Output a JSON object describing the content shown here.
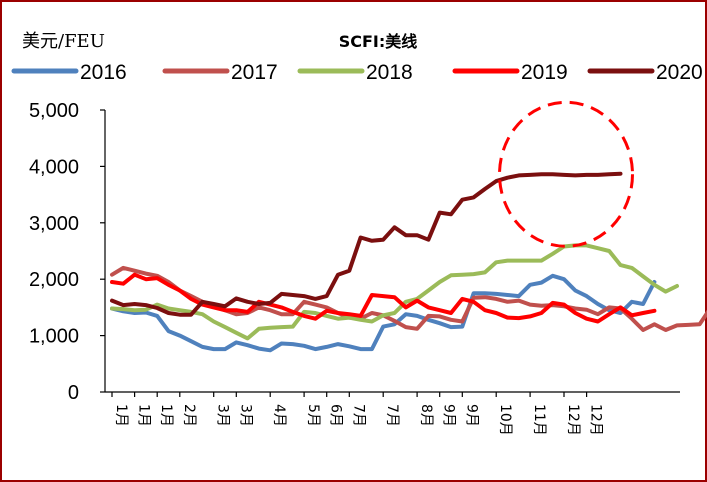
{
  "chart_data": {
    "type": "line",
    "title": "SCFI:美线",
    "ylabel": "美元/FEU",
    "xlabel": "",
    "ylim": [
      0,
      5000
    ],
    "yticks": [
      0,
      1000,
      2000,
      3000,
      4000,
      5000
    ],
    "ytick_labels": [
      "0",
      "1,000",
      "2,000",
      "3,000",
      "4,000",
      "5,000"
    ],
    "grid": false,
    "legend_position": "top",
    "x_labels": [
      "1月",
      "1月",
      "1月",
      "2月",
      "3月",
      "3月",
      "4月",
      "5月",
      "6月",
      "7月",
      "7月",
      "8月",
      "9月",
      "9月",
      "10月",
      "11月",
      "12月",
      "12月"
    ],
    "x_label_weeks": [
      0,
      2,
      4,
      6,
      9,
      11,
      14,
      17,
      19,
      21,
      24,
      27,
      29,
      31,
      34,
      37,
      40,
      42
    ],
    "series": [
      {
        "name": "2016",
        "color": "#4f81bd",
        "values": [
          1480,
          1430,
          1400,
          1410,
          1350,
          1080,
          1000,
          900,
          800,
          760,
          760,
          880,
          830,
          770,
          740,
          860,
          850,
          820,
          760,
          800,
          850,
          810,
          760,
          760,
          1160,
          1200,
          1380,
          1350,
          1280,
          1220,
          1150,
          1160,
          1750,
          1750,
          1740,
          1720,
          1700,
          1900,
          1940,
          2060,
          2000,
          1800,
          1700,
          1560,
          1450,
          1400,
          1600,
          1560,
          1950
        ]
      },
      {
        "name": "2017",
        "color": "#c0504d",
        "values": [
          2080,
          2200,
          2150,
          2100,
          2060,
          1950,
          1800,
          1700,
          1600,
          1520,
          1450,
          1380,
          1400,
          1500,
          1450,
          1380,
          1380,
          1600,
          1550,
          1500,
          1400,
          1320,
          1300,
          1400,
          1360,
          1260,
          1150,
          1120,
          1350,
          1340,
          1280,
          1250,
          1670,
          1680,
          1650,
          1600,
          1620,
          1550,
          1530,
          1540,
          1520,
          1480,
          1460,
          1380,
          1500,
          1480,
          1300,
          1100,
          1200,
          1100,
          1180,
          1190,
          1200,
          1500
        ]
      },
      {
        "name": "2018",
        "color": "#9bbb59",
        "values": [
          1480,
          1470,
          1450,
          1460,
          1550,
          1480,
          1450,
          1420,
          1380,
          1250,
          1150,
          1050,
          950,
          1120,
          1140,
          1150,
          1160,
          1420,
          1400,
          1350,
          1300,
          1320,
          1280,
          1250,
          1360,
          1400,
          1600,
          1650,
          1800,
          1950,
          2070,
          2080,
          2090,
          2120,
          2300,
          2330,
          2330,
          2330,
          2330,
          2450,
          2580,
          2600,
          2600,
          2550,
          2500,
          2250,
          2200,
          2050,
          1900,
          1780,
          1880
        ]
      },
      {
        "name": "2019",
        "color": "#ff0000",
        "values": [
          1950,
          1920,
          2080,
          2000,
          2020,
          1900,
          1800,
          1650,
          1550,
          1500,
          1450,
          1450,
          1420,
          1600,
          1550,
          1500,
          1420,
          1350,
          1300,
          1440,
          1400,
          1380,
          1350,
          1720,
          1700,
          1680,
          1500,
          1620,
          1500,
          1450,
          1400,
          1650,
          1600,
          1450,
          1400,
          1320,
          1310,
          1340,
          1400,
          1580,
          1550,
          1400,
          1300,
          1250,
          1380,
          1500,
          1360,
          1400,
          1440
        ]
      },
      {
        "name": "2020",
        "color": "#7b0f0f",
        "values": [
          1620,
          1540,
          1560,
          1540,
          1490,
          1400,
          1370,
          1370,
          1600,
          1560,
          1520,
          1660,
          1600,
          1560,
          1580,
          1740,
          1720,
          1700,
          1650,
          1700,
          2080,
          2150,
          2740,
          2680,
          2700,
          2920,
          2780,
          2780,
          2700,
          3180,
          3150,
          3410,
          3450,
          3600,
          3740,
          3800,
          3840,
          3850,
          3860,
          3860,
          3850,
          3840,
          3850,
          3850,
          3860,
          3870
        ]
      }
    ],
    "annotations": [
      {
        "type": "dashed-ellipse",
        "color": "#ff0000",
        "target_series": "2020",
        "range_weeks": [
          35,
          45
        ]
      }
    ]
  }
}
